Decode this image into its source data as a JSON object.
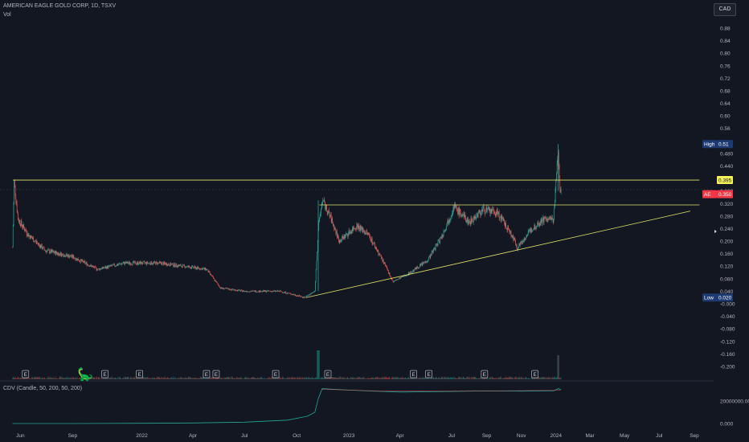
{
  "header": {
    "symbol": "AMERICAN EAGLE GOLD CORP, 1D, TSXV",
    "volume_label": "Vol",
    "currency": "CAD"
  },
  "indicator": {
    "label": "CDV (Candle, 50, 200, 50, 200)"
  },
  "logo": "tradingview-logo",
  "chart_data": [
    {
      "type": "candlestick",
      "title": "AMERICAN EAGLE GOLD CORP, 1D, TSXV",
      "ylim": [
        -0.2,
        0.95
      ],
      "y_ticks": [
        0.88,
        0.84,
        0.8,
        0.76,
        0.72,
        0.68,
        0.64,
        0.6,
        0.56,
        0.48,
        0.44,
        0.36,
        0.32,
        0.28,
        0.24,
        0.2,
        0.16,
        0.12,
        0.08,
        0.04,
        -0.0,
        -0.04,
        -0.08,
        -0.12,
        -0.16,
        -0.2
      ],
      "x_ticks": [
        "Jun",
        "Sep",
        "2022",
        "Apr",
        "Jul",
        "Oct",
        "2023",
        "Apr",
        "Jul",
        "Sep",
        "Nov",
        "2024",
        "Mar",
        "May",
        "Jul",
        "Sep"
      ],
      "x_tick_dates": [
        "2021-06-01",
        "2021-09-01",
        "2022-01-01",
        "2022-04-01",
        "2022-07-01",
        "2022-10-01",
        "2023-01-01",
        "2023-04-01",
        "2023-07-01",
        "2023-09-01",
        "2023-11-01",
        "2024-01-01",
        "2024-03-01",
        "2024-05-01",
        "2024-07-01",
        "2024-09-01"
      ],
      "xlim": [
        "2021-04-26",
        "2024-10-05"
      ],
      "price_path": [
        {
          "date": "2021-05-18",
          "price": 0.18
        },
        {
          "date": "2021-05-21",
          "price": 0.39
        },
        {
          "date": "2021-05-28",
          "price": 0.27
        },
        {
          "date": "2021-06-15",
          "price": 0.22
        },
        {
          "date": "2021-07-15",
          "price": 0.17
        },
        {
          "date": "2021-09-01",
          "price": 0.15
        },
        {
          "date": "2021-10-15",
          "price": 0.11
        },
        {
          "date": "2021-12-01",
          "price": 0.13
        },
        {
          "date": "2022-02-01",
          "price": 0.13
        },
        {
          "date": "2022-03-15",
          "price": 0.12
        },
        {
          "date": "2022-04-25",
          "price": 0.11
        },
        {
          "date": "2022-05-20",
          "price": 0.05
        },
        {
          "date": "2022-07-01",
          "price": 0.04
        },
        {
          "date": "2022-09-01",
          "price": 0.04
        },
        {
          "date": "2022-10-05",
          "price": 0.025
        },
        {
          "date": "2022-10-15",
          "price": 0.02
        },
        {
          "date": "2022-11-02",
          "price": 0.04
        },
        {
          "date": "2022-11-08",
          "price": 0.24
        },
        {
          "date": "2022-11-15",
          "price": 0.33
        },
        {
          "date": "2022-12-01",
          "price": 0.27
        },
        {
          "date": "2022-12-15",
          "price": 0.2
        },
        {
          "date": "2023-01-15",
          "price": 0.25
        },
        {
          "date": "2023-02-05",
          "price": 0.22
        },
        {
          "date": "2023-03-01",
          "price": 0.14
        },
        {
          "date": "2023-03-20",
          "price": 0.07
        },
        {
          "date": "2023-04-20",
          "price": 0.1
        },
        {
          "date": "2023-05-20",
          "price": 0.14
        },
        {
          "date": "2023-06-15",
          "price": 0.22
        },
        {
          "date": "2023-07-05",
          "price": 0.31
        },
        {
          "date": "2023-08-01",
          "price": 0.26
        },
        {
          "date": "2023-08-25",
          "price": 0.3
        },
        {
          "date": "2023-09-20",
          "price": 0.29
        },
        {
          "date": "2023-10-15",
          "price": 0.22
        },
        {
          "date": "2023-10-25",
          "price": 0.18
        },
        {
          "date": "2023-11-20",
          "price": 0.24
        },
        {
          "date": "2023-12-10",
          "price": 0.27
        },
        {
          "date": "2023-12-28",
          "price": 0.27
        },
        {
          "date": "2024-01-05",
          "price": 0.5
        },
        {
          "date": "2024-01-08",
          "price": 0.36
        },
        {
          "date": "2024-01-10",
          "price": 0.35
        }
      ],
      "horizontal_lines": [
        {
          "value": 0.395,
          "from": "2021-05-19",
          "to": "2024-09-10",
          "color": "#e3e36a"
        },
        {
          "value": 0.3155,
          "from": "2022-11-10",
          "to": "2024-09-10",
          "color": "#e3e36a"
        }
      ],
      "trendline": {
        "from": {
          "date": "2022-10-18",
          "price": 0.02
        },
        "to": {
          "date": "2024-08-25",
          "price": 0.296
        },
        "color": "#e3e36a"
      },
      "price_labels": [
        {
          "text": "High",
          "value": "0.51",
          "price": 0.51,
          "color": "#1e3a72"
        },
        {
          "text": "",
          "value": "0.395",
          "price": 0.395,
          "color": "#f4f05a"
        },
        {
          "text": "AE",
          "value": "0.350",
          "price": 0.35,
          "color": "#f23645"
        },
        {
          "text": "Low",
          "value": "0.020",
          "price": 0.02,
          "color": "#1e3a72"
        }
      ],
      "earnings_markers": [
        "2021-06-10",
        "2021-10-28",
        "2021-12-28",
        "2022-04-25",
        "2022-05-12",
        "2022-08-25",
        "2022-11-25",
        "2023-04-25",
        "2023-05-22",
        "2023-08-28",
        "2023-11-25"
      ],
      "earnings_label": "E",
      "colors": {
        "up": "#26a69a",
        "down": "#ef5350",
        "line": "#e3e36a"
      }
    },
    {
      "type": "line",
      "title": "CDV (Candle, 50, 200, 50, 200)",
      "y_ticks": [
        "20000000.00",
        "0.000"
      ],
      "y_tick_values": [
        20000000,
        0
      ],
      "ylim": [
        -2500000,
        30000000
      ],
      "series": [
        {
          "x": [
            "2021-05-18",
            "2021-09-01",
            "2022-01-01",
            "2022-04-01",
            "2022-07-01",
            "2022-09-15",
            "2022-10-20",
            "2022-11-02",
            "2022-11-08",
            "2022-11-15",
            "2022-12-01",
            "2023-02-01",
            "2023-04-01",
            "2023-07-01",
            "2023-09-01",
            "2023-11-01",
            "2023-12-28",
            "2024-01-05",
            "2024-01-10"
          ],
          "values": [
            0,
            0,
            200000,
            500000,
            1200000,
            3000000,
            6500000,
            10000000,
            22000000,
            31000000,
            30500000,
            29000000,
            28000000,
            28500000,
            29000000,
            28800000,
            29000000,
            31000000,
            30200000
          ]
        }
      ]
    }
  ]
}
